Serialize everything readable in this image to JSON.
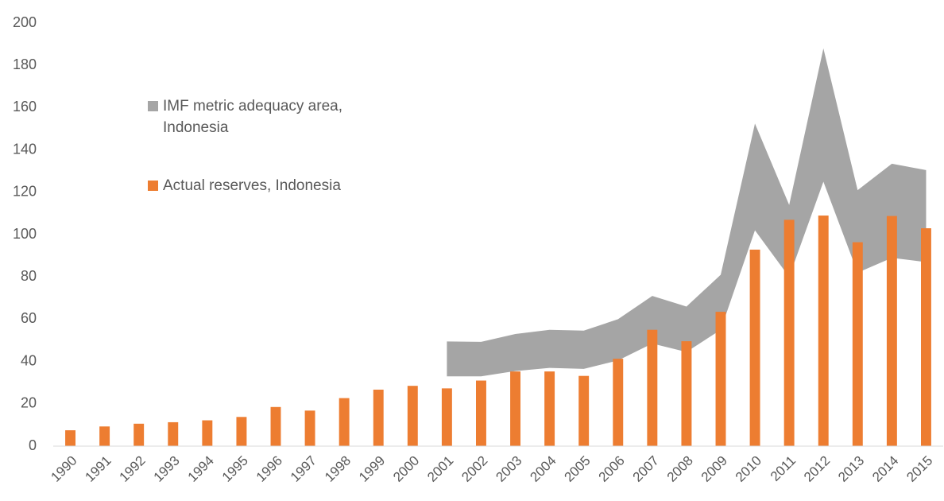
{
  "chart_data": {
    "type": "bar-band",
    "categories": [
      "1990",
      "1991",
      "1992",
      "1993",
      "1994",
      "1995",
      "1996",
      "1997",
      "1998",
      "1999",
      "2000",
      "2001",
      "2002",
      "2003",
      "2004",
      "2005",
      "2006",
      "2007",
      "2008",
      "2009",
      "2010",
      "2011",
      "2012",
      "2013",
      "2014",
      "2015"
    ],
    "series": [
      {
        "name": "IMF metric adequacy area, Indonesia",
        "type": "band",
        "color": "#a5a5a5",
        "lower": [
          null,
          null,
          null,
          null,
          null,
          null,
          null,
          null,
          null,
          null,
          null,
          33,
          33,
          35.5,
          37,
          36.5,
          40.5,
          48.5,
          44.5,
          55,
          102,
          80,
          125,
          82,
          89,
          87
        ],
        "upper": [
          null,
          null,
          null,
          null,
          null,
          null,
          null,
          null,
          null,
          null,
          null,
          49.5,
          49.3,
          53,
          55,
          54.6,
          60,
          71,
          66,
          81,
          152.5,
          114,
          188,
          121,
          133.5,
          130.5
        ]
      },
      {
        "name": "Actual reserves, Indonesia",
        "type": "bar",
        "color": "#ed7d31",
        "values": [
          7.5,
          9.3,
          10.6,
          11.3,
          12.2,
          13.8,
          18.5,
          16.8,
          22.7,
          26.7,
          28.5,
          27.3,
          31,
          35.3,
          35.3,
          33.2,
          41.3,
          55,
          49.6,
          63.5,
          92.9,
          107,
          109,
          96.4,
          108.8,
          103
        ]
      }
    ],
    "ylim": [
      0,
      200
    ],
    "yticks": [
      0,
      20,
      40,
      60,
      80,
      100,
      120,
      140,
      160,
      180,
      200
    ],
    "grid": false
  }
}
